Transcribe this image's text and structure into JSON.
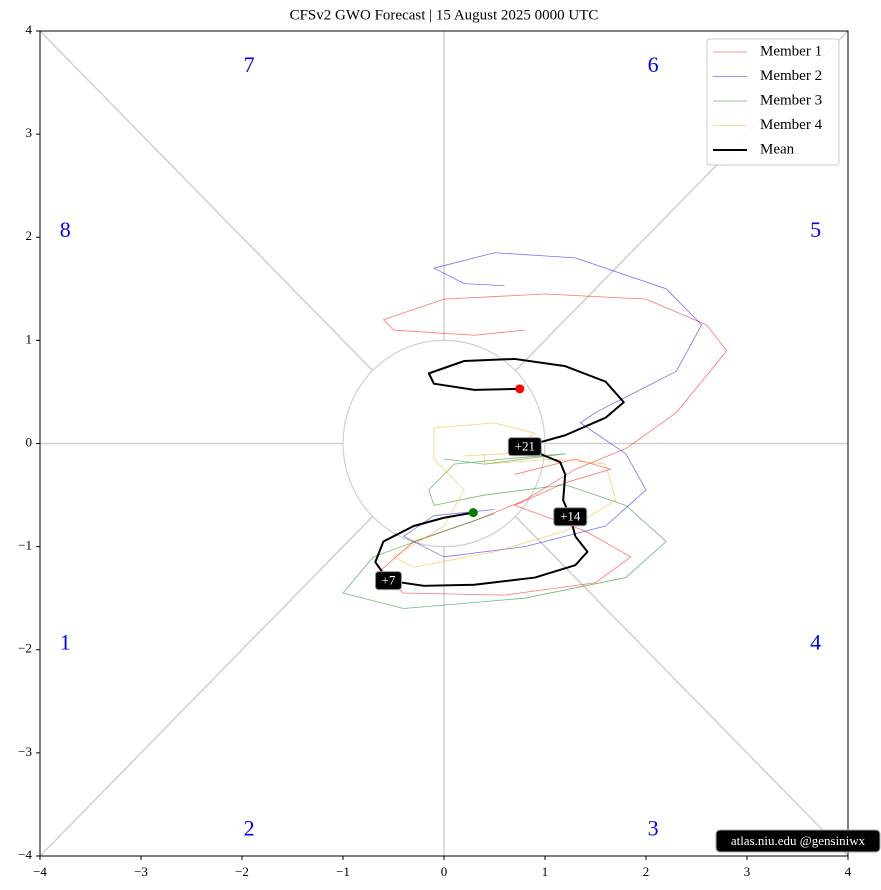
{
  "chart_data": {
    "type": "phase",
    "title": "CFSv2 GWO Forecast   |   15  August  2025 0000 UTC",
    "xlim": [
      -4,
      4
    ],
    "ylim": [
      -4,
      4
    ],
    "xticks": [
      {
        "value": -4,
        "label": "−4"
      },
      {
        "value": -3,
        "label": "−3"
      },
      {
        "value": -2,
        "label": "−2"
      },
      {
        "value": -1,
        "label": "−1"
      },
      0,
      1,
      2,
      3,
      4
    ],
    "yticks": [
      {
        "value": -4,
        "label": "−4"
      },
      {
        "value": -3,
        "label": "−3"
      },
      {
        "value": -2,
        "label": "−2"
      },
      {
        "value": -1,
        "label": "−1"
      },
      0,
      1,
      2,
      3,
      4
    ],
    "series": [
      {
        "name": "Member 1",
        "color": "#ff0000",
        "x": [
          0.7,
          1.3,
          1.65,
          1.2,
          0.7,
          1.4,
          1.85,
          1.5,
          0.6,
          -0.4,
          -0.65,
          -0.3,
          0.3,
          0.8,
          1.3,
          1.8,
          2.3,
          2.8,
          2.6,
          2.0,
          1.0,
          0.0,
          -0.6,
          -0.5,
          0.3,
          0.8
        ],
        "y": [
          -0.3,
          -0.15,
          -0.25,
          -0.38,
          -0.6,
          -0.85,
          -1.1,
          -1.35,
          -1.47,
          -1.45,
          -1.25,
          -0.95,
          -0.75,
          -0.55,
          -0.25,
          -0.05,
          0.3,
          0.9,
          1.15,
          1.4,
          1.45,
          1.4,
          1.2,
          1.1,
          1.05,
          1.1
        ]
      },
      {
        "name": "Member 2",
        "color": "#0000ff",
        "x": [
          0.6,
          0.2,
          -0.1,
          0.5,
          1.3,
          2.2,
          2.55,
          2.3,
          1.5,
          1.35,
          1.8,
          2.0,
          1.6,
          0.8,
          0.0,
          -0.4,
          -0.1,
          0.5
        ],
        "y": [
          1.53,
          1.55,
          1.7,
          1.85,
          1.8,
          1.5,
          1.15,
          0.7,
          0.3,
          0.2,
          -0.1,
          -0.45,
          -0.8,
          -1.0,
          -1.1,
          -0.9,
          -0.7,
          -0.64
        ]
      },
      {
        "name": "Member 3",
        "color": "#008000",
        "x": [
          0.0,
          0.4,
          1.2,
          0.6,
          0.1,
          -0.15,
          -0.1,
          0.4,
          1.2,
          1.8,
          2.2,
          1.8,
          0.8,
          -0.4,
          -1.0,
          -0.7,
          0.0,
          0.5
        ],
        "y": [
          -0.15,
          -0.2,
          -0.1,
          -0.15,
          -0.2,
          -0.45,
          -0.6,
          -0.5,
          -0.4,
          -0.6,
          -0.95,
          -1.3,
          -1.5,
          -1.6,
          -1.45,
          -1.1,
          -0.85,
          -0.68
        ]
      },
      {
        "name": "Member 4",
        "color": "#ffa500",
        "x": [
          0.4,
          0.4,
          1.1,
          1.6,
          1.7,
          1.2,
          0.5,
          -0.3,
          -0.5,
          0.0,
          0.2,
          -0.1,
          -0.1,
          0.5,
          0.9,
          0.6,
          0.2
        ],
        "y": [
          -0.1,
          -0.2,
          -0.15,
          -0.2,
          -0.55,
          -0.85,
          -1.05,
          -1.2,
          -1.1,
          -0.8,
          -0.45,
          -0.15,
          0.15,
          0.2,
          0.1,
          -0.1,
          -0.12
        ]
      },
      {
        "name": "Mean",
        "color": "#000000",
        "x": [
          0.29,
          0,
          -0.3,
          -0.6,
          -0.68,
          -0.55,
          -0.2,
          0.3,
          0.9,
          1.3,
          1.42,
          1.3,
          1.25,
          1.18,
          1.2,
          1.15,
          1.0,
          0.8,
          1.2,
          1.6,
          1.78,
          1.6,
          1.2,
          0.7,
          0.2,
          -0.15,
          -0.1,
          0.3,
          0.75
        ],
        "y": [
          -0.67,
          -0.72,
          -0.8,
          -0.95,
          -1.15,
          -1.33,
          -1.38,
          -1.37,
          -1.3,
          -1.18,
          -1.05,
          -0.9,
          -0.71,
          -0.55,
          -0.3,
          -0.18,
          -0.12,
          -0.03,
          0.08,
          0.25,
          0.4,
          0.6,
          0.75,
          0.82,
          0.8,
          0.68,
          0.58,
          0.52,
          0.53
        ]
      }
    ],
    "start_color": "#008000",
    "end_color": "#ff0000",
    "annotations": [
      {
        "text": "+7",
        "x": -0.55,
        "y": -1.33
      },
      {
        "text": "+14",
        "x": 1.25,
        "y": -0.71
      },
      {
        "text": "+21",
        "x": 0.8,
        "y": -0.03
      }
    ],
    "phase_labels": [
      {
        "text": "1",
        "x": -3.75,
        "y": -1.95
      },
      {
        "text": "2",
        "x": -1.93,
        "y": -3.75
      },
      {
        "text": "3",
        "x": 2.07,
        "y": -3.75
      },
      {
        "text": "4",
        "x": 3.68,
        "y": -1.95
      },
      {
        "text": "5",
        "x": 3.68,
        "y": 2.05
      },
      {
        "text": "6",
        "x": 2.07,
        "y": 3.65
      },
      {
        "text": "7",
        "x": -1.93,
        "y": 3.65
      },
      {
        "text": "8",
        "x": -3.75,
        "y": 2.05
      }
    ],
    "watermark": "atlas.niu.edu  @gensiniwx"
  }
}
